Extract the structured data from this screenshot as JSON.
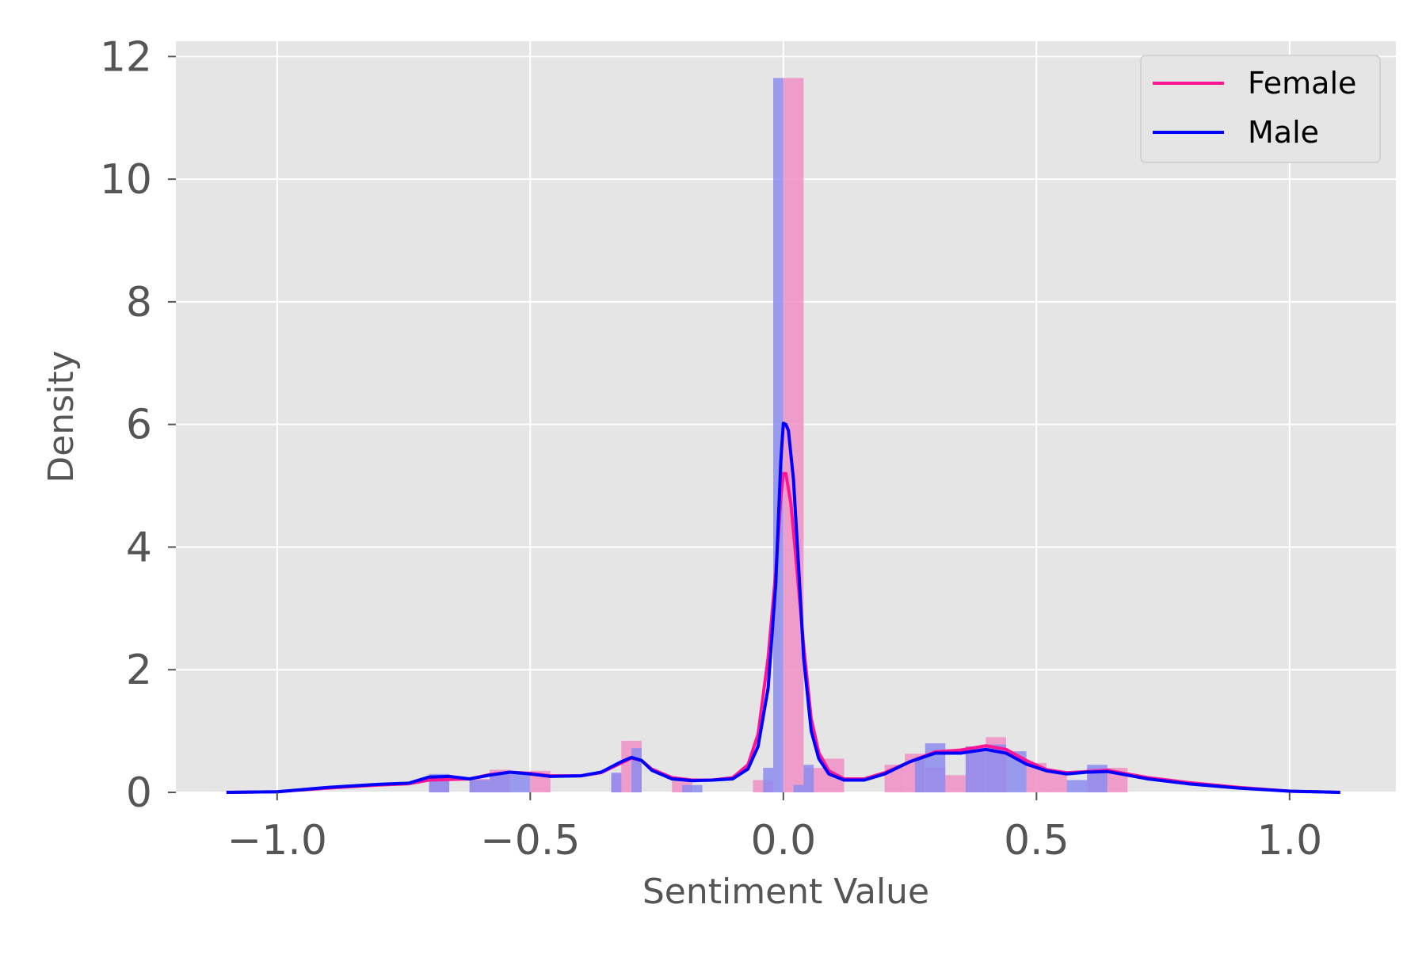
{
  "chart_data": {
    "type": "bar",
    "xlabel": "Sentiment Value",
    "ylabel": "Density",
    "xlim": [
      -1.2,
      1.21
    ],
    "ylim": [
      0,
      12.25
    ],
    "x_ticks": [
      -1.0,
      -0.5,
      0.0,
      0.5,
      1.0
    ],
    "x_tick_labels": [
      "−1.0",
      "−0.5",
      "0.0",
      "0.5",
      "1.0"
    ],
    "y_ticks": [
      0,
      2,
      4,
      6,
      8,
      10,
      12
    ],
    "y_tick_labels": [
      "0",
      "2",
      "4",
      "6",
      "8",
      "10",
      "12"
    ],
    "grid": true,
    "legend_position": "top-right",
    "colors": {
      "background": "#e5e5e5",
      "grid": "#ffffff",
      "female": "#ff1493",
      "male": "#0000ff",
      "female_bar": "#f08fc4",
      "male_bar": "#8c8cf0",
      "tick_text": "#555555"
    },
    "series": [
      {
        "name": "Female",
        "color": "#ff1493",
        "bar_color": "#f08fc4",
        "bars": [
          {
            "x0": -0.7,
            "x1": -0.66,
            "y": 0.2
          },
          {
            "x0": -0.62,
            "x1": -0.58,
            "y": 0.22
          },
          {
            "x0": -0.58,
            "x1": -0.54,
            "y": 0.37
          },
          {
            "x0": -0.5,
            "x1": -0.46,
            "y": 0.35
          },
          {
            "x0": -0.34,
            "x1": -0.32,
            "y": 0.3
          },
          {
            "x0": -0.32,
            "x1": -0.28,
            "y": 0.84
          },
          {
            "x0": -0.22,
            "x1": -0.18,
            "y": 0.2
          },
          {
            "x0": -0.06,
            "x1": -0.02,
            "y": 0.2
          },
          {
            "x0": 0.0,
            "x1": 0.04,
            "y": 11.65
          },
          {
            "x0": 0.04,
            "x1": 0.08,
            "y": 0.4
          },
          {
            "x0": 0.08,
            "x1": 0.12,
            "y": 0.55
          },
          {
            "x0": 0.2,
            "x1": 0.24,
            "y": 0.45
          },
          {
            "x0": 0.24,
            "x1": 0.28,
            "y": 0.63
          },
          {
            "x0": 0.28,
            "x1": 0.32,
            "y": 0.4
          },
          {
            "x0": 0.32,
            "x1": 0.36,
            "y": 0.28
          },
          {
            "x0": 0.36,
            "x1": 0.4,
            "y": 0.75
          },
          {
            "x0": 0.4,
            "x1": 0.44,
            "y": 0.9
          },
          {
            "x0": 0.48,
            "x1": 0.52,
            "y": 0.48
          },
          {
            "x0": 0.52,
            "x1": 0.56,
            "y": 0.32
          },
          {
            "x0": 0.6,
            "x1": 0.64,
            "y": 0.4
          },
          {
            "x0": 0.64,
            "x1": 0.68,
            "y": 0.4
          }
        ],
        "kde": [
          [
            -1.1,
            0.0
          ],
          [
            -1.0,
            0.01
          ],
          [
            -0.9,
            0.07
          ],
          [
            -0.8,
            0.12
          ],
          [
            -0.74,
            0.14
          ],
          [
            -0.7,
            0.2
          ],
          [
            -0.66,
            0.21
          ],
          [
            -0.62,
            0.22
          ],
          [
            -0.58,
            0.29
          ],
          [
            -0.54,
            0.33
          ],
          [
            -0.5,
            0.31
          ],
          [
            -0.46,
            0.27
          ],
          [
            -0.4,
            0.27
          ],
          [
            -0.36,
            0.32
          ],
          [
            -0.32,
            0.48
          ],
          [
            -0.3,
            0.56
          ],
          [
            -0.28,
            0.52
          ],
          [
            -0.26,
            0.38
          ],
          [
            -0.22,
            0.24
          ],
          [
            -0.18,
            0.2
          ],
          [
            -0.14,
            0.2
          ],
          [
            -0.1,
            0.24
          ],
          [
            -0.07,
            0.45
          ],
          [
            -0.05,
            0.95
          ],
          [
            -0.03,
            2.2
          ],
          [
            -0.015,
            3.6
          ],
          [
            -0.005,
            4.8
          ],
          [
            0.0,
            5.2
          ],
          [
            0.005,
            5.2
          ],
          [
            0.015,
            4.7
          ],
          [
            0.025,
            3.8
          ],
          [
            0.04,
            2.4
          ],
          [
            0.055,
            1.2
          ],
          [
            0.07,
            0.65
          ],
          [
            0.09,
            0.35
          ],
          [
            0.12,
            0.22
          ],
          [
            0.16,
            0.22
          ],
          [
            0.2,
            0.32
          ],
          [
            0.25,
            0.5
          ],
          [
            0.3,
            0.66
          ],
          [
            0.35,
            0.69
          ],
          [
            0.4,
            0.76
          ],
          [
            0.44,
            0.7
          ],
          [
            0.48,
            0.52
          ],
          [
            0.52,
            0.37
          ],
          [
            0.56,
            0.32
          ],
          [
            0.6,
            0.34
          ],
          [
            0.64,
            0.36
          ],
          [
            0.68,
            0.3
          ],
          [
            0.72,
            0.24
          ],
          [
            0.8,
            0.16
          ],
          [
            0.9,
            0.08
          ],
          [
            1.0,
            0.02
          ],
          [
            1.1,
            0.0
          ]
        ]
      },
      {
        "name": "Male",
        "color": "#0000ff",
        "bar_color": "#8c8cf0",
        "bars": [
          {
            "x0": -0.7,
            "x1": -0.66,
            "y": 0.3
          },
          {
            "x0": -0.62,
            "x1": -0.58,
            "y": 0.2
          },
          {
            "x0": -0.58,
            "x1": -0.54,
            "y": 0.32
          },
          {
            "x0": -0.54,
            "x1": -0.5,
            "y": 0.3
          },
          {
            "x0": -0.34,
            "x1": -0.32,
            "y": 0.32
          },
          {
            "x0": -0.3,
            "x1": -0.28,
            "y": 0.72
          },
          {
            "x0": -0.2,
            "x1": -0.16,
            "y": 0.12
          },
          {
            "x0": -0.04,
            "x1": -0.02,
            "y": 0.4
          },
          {
            "x0": -0.02,
            "x1": 0.0,
            "y": 11.65
          },
          {
            "x0": 0.02,
            "x1": 0.04,
            "y": 0.12
          },
          {
            "x0": 0.04,
            "x1": 0.06,
            "y": 0.45
          },
          {
            "x0": 0.26,
            "x1": 0.28,
            "y": 0.55
          },
          {
            "x0": 0.28,
            "x1": 0.32,
            "y": 0.8
          },
          {
            "x0": 0.36,
            "x1": 0.4,
            "y": 0.75
          },
          {
            "x0": 0.4,
            "x1": 0.44,
            "y": 0.78
          },
          {
            "x0": 0.44,
            "x1": 0.48,
            "y": 0.67
          },
          {
            "x0": 0.56,
            "x1": 0.6,
            "y": 0.2
          },
          {
            "x0": 0.6,
            "x1": 0.64,
            "y": 0.45
          }
        ],
        "kde": [
          [
            -1.1,
            0.0
          ],
          [
            -1.0,
            0.01
          ],
          [
            -0.9,
            0.08
          ],
          [
            -0.8,
            0.13
          ],
          [
            -0.74,
            0.15
          ],
          [
            -0.7,
            0.25
          ],
          [
            -0.66,
            0.26
          ],
          [
            -0.62,
            0.22
          ],
          [
            -0.58,
            0.28
          ],
          [
            -0.54,
            0.33
          ],
          [
            -0.5,
            0.3
          ],
          [
            -0.46,
            0.26
          ],
          [
            -0.4,
            0.27
          ],
          [
            -0.36,
            0.33
          ],
          [
            -0.32,
            0.5
          ],
          [
            -0.3,
            0.57
          ],
          [
            -0.28,
            0.52
          ],
          [
            -0.26,
            0.36
          ],
          [
            -0.22,
            0.22
          ],
          [
            -0.18,
            0.19
          ],
          [
            -0.14,
            0.2
          ],
          [
            -0.1,
            0.22
          ],
          [
            -0.07,
            0.38
          ],
          [
            -0.05,
            0.75
          ],
          [
            -0.03,
            1.7
          ],
          [
            -0.015,
            3.4
          ],
          [
            -0.005,
            5.4
          ],
          [
            0.0,
            6.02
          ],
          [
            0.005,
            6.0
          ],
          [
            0.01,
            5.9
          ],
          [
            0.02,
            5.1
          ],
          [
            0.03,
            3.7
          ],
          [
            0.04,
            2.2
          ],
          [
            0.055,
            1.0
          ],
          [
            0.07,
            0.55
          ],
          [
            0.09,
            0.3
          ],
          [
            0.12,
            0.2
          ],
          [
            0.16,
            0.2
          ],
          [
            0.2,
            0.3
          ],
          [
            0.25,
            0.5
          ],
          [
            0.3,
            0.64
          ],
          [
            0.35,
            0.64
          ],
          [
            0.4,
            0.7
          ],
          [
            0.44,
            0.64
          ],
          [
            0.48,
            0.46
          ],
          [
            0.52,
            0.35
          ],
          [
            0.56,
            0.3
          ],
          [
            0.6,
            0.33
          ],
          [
            0.64,
            0.34
          ],
          [
            0.68,
            0.28
          ],
          [
            0.72,
            0.22
          ],
          [
            0.8,
            0.14
          ],
          [
            0.9,
            0.07
          ],
          [
            1.0,
            0.02
          ],
          [
            1.1,
            0.0
          ]
        ]
      }
    ]
  }
}
